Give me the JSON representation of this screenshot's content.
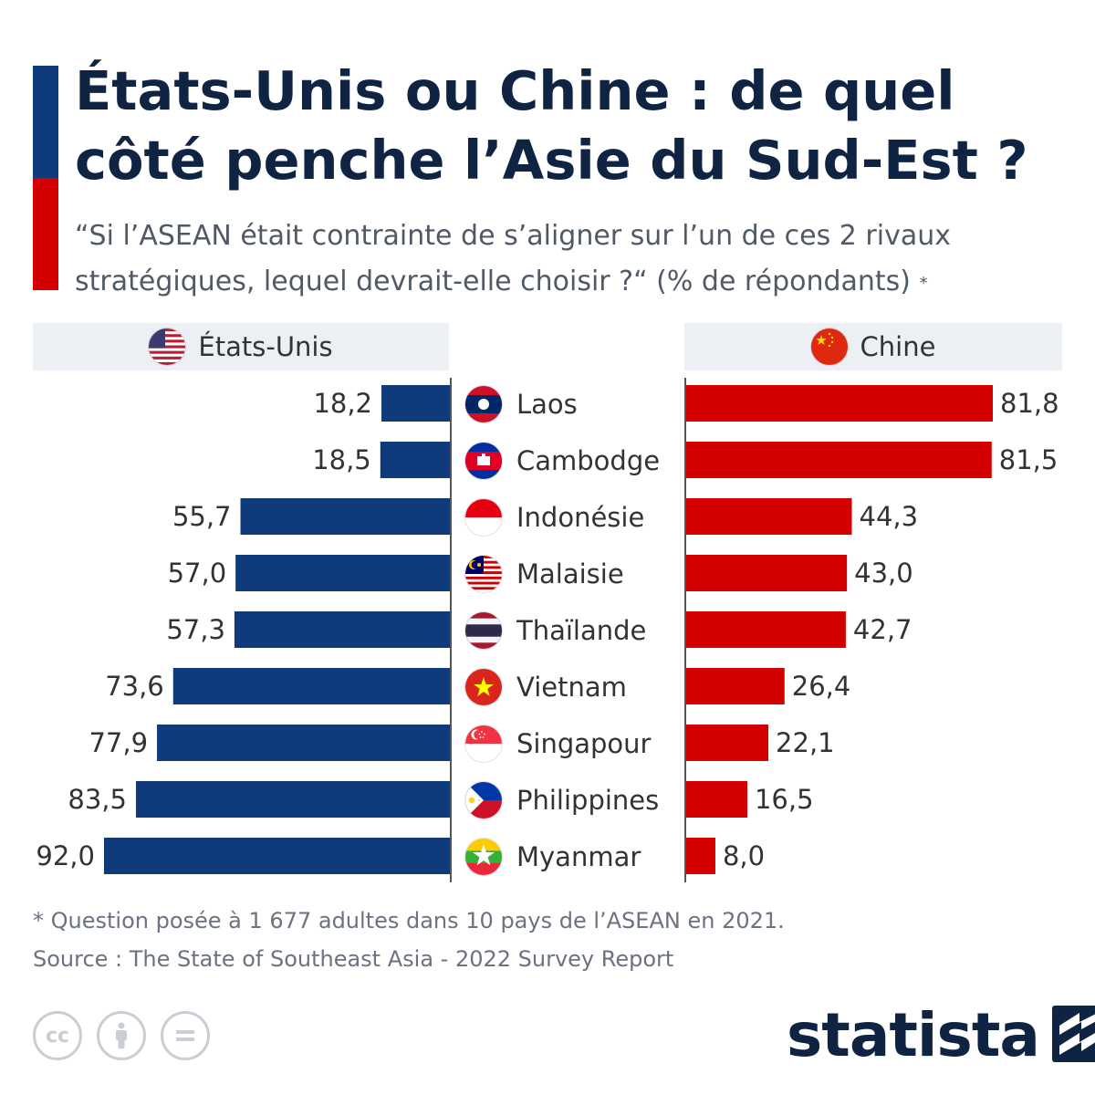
{
  "title": "États-Unis ou Chine : de quel côté penche l’Asie du Sud-Est ?",
  "subtitle": "“Si l’ASEAN était contrainte de s’aligner sur l’un de ces 2 rivaux stratégiques, lequel devrait-elle choisir ?“ (% de répondants)",
  "subtitle_marker": "*",
  "colors": {
    "us": "#0f3a7c",
    "cn": "#d40000",
    "title": "#0f2443",
    "accent_top": "#0f3a7c",
    "accent_bottom": "#d40000"
  },
  "headers": {
    "us": "États-Unis",
    "cn": "Chine"
  },
  "chart_data": {
    "type": "bar",
    "orientation": "horizontal-butterfly",
    "categories": [
      "Laos",
      "Cambodge",
      "Indonésie",
      "Malaisie",
      "Thaïlande",
      "Vietnam",
      "Singapour",
      "Philippines",
      "Myanmar"
    ],
    "series": [
      {
        "name": "États-Unis",
        "values": [
          18.2,
          18.5,
          55.7,
          57.0,
          57.3,
          73.6,
          77.9,
          83.5,
          92.0
        ],
        "labels": [
          "18,2",
          "18,5",
          "55,7",
          "57,0",
          "57,3",
          "73,6",
          "77,9",
          "83,5",
          "92,0"
        ]
      },
      {
        "name": "Chine",
        "values": [
          81.8,
          81.5,
          44.3,
          43.0,
          42.7,
          26.4,
          22.1,
          16.5,
          8.0
        ],
        "labels": [
          "81,8",
          "81,5",
          "44,3",
          "43,0",
          "42,7",
          "26,4",
          "22,1",
          "16,5",
          "8,0"
        ]
      }
    ],
    "xlim": [
      0,
      100
    ]
  },
  "flags": [
    "flag-laos-icon",
    "flag-cambodia-icon",
    "flag-indonesia-icon",
    "flag-malaysia-icon",
    "flag-thailand-icon",
    "flag-vietnam-icon",
    "flag-singapore-icon",
    "flag-philippines-icon",
    "flag-myanmar-icon"
  ],
  "footnote": {
    "note": "* Question posée à 1 677 adultes dans 10 pays de l’ASEAN en 2021.",
    "source": "Source : The State of Southeast Asia - 2022 Survey Report"
  },
  "license_icons": [
    "cc-icon",
    "attribution-icon",
    "no-derivatives-icon"
  ],
  "brand": {
    "name": "statista"
  }
}
